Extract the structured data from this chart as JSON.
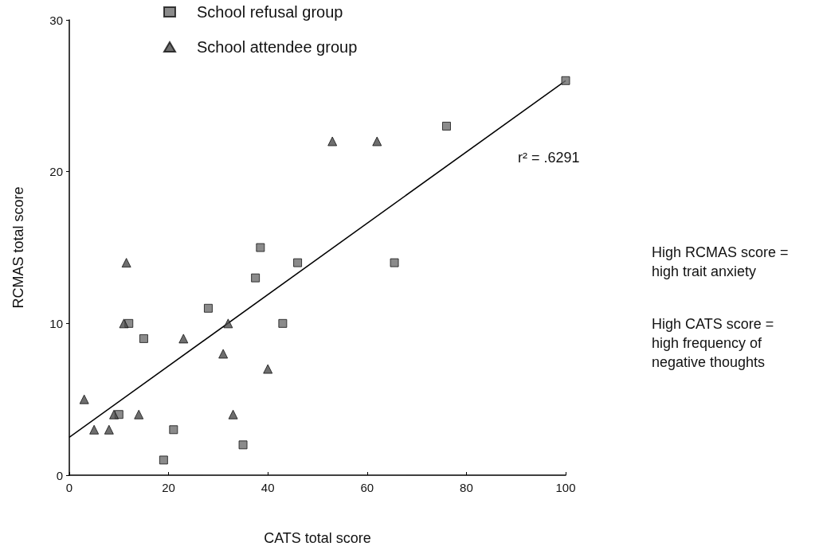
{
  "chart_data": {
    "type": "scatter",
    "xlabel": "CATS total score",
    "ylabel": "RCMAS total score",
    "xlim": [
      0,
      100
    ],
    "xticks": [
      0,
      20,
      40,
      60,
      80,
      100
    ],
    "ylim": [
      0,
      30
    ],
    "yticks": [
      0,
      10,
      20,
      30
    ],
    "grid": false,
    "legend": "top left",
    "series": [
      {
        "name": "School refusal group",
        "color": "#6e6e6e",
        "marker": "square",
        "x": [
          100,
          76,
          65.5,
          38.5,
          46,
          37.5,
          28,
          12,
          43,
          15,
          10,
          21,
          35,
          19
        ],
        "values": [
          26,
          23,
          14,
          15,
          14,
          13,
          11,
          10,
          10,
          9,
          4,
          3,
          2,
          1
        ]
      },
      {
        "name": "School attendee group",
        "color": "#4a4a4a",
        "marker": "triangle",
        "x": [
          53,
          62,
          11.5,
          11,
          32,
          23,
          31,
          40,
          3,
          9,
          14,
          33,
          5,
          8
        ],
        "values": [
          22,
          22,
          14,
          10,
          10,
          9,
          8,
          7,
          5,
          4,
          4,
          4,
          3,
          3
        ]
      },
      {
        "type": "line",
        "color": "#000000",
        "marker": "none",
        "x": [
          0,
          100
        ],
        "values": [
          2.5,
          26
        ]
      }
    ],
    "annotations": [
      "r² = .6291",
      "High RCMAS score = high trait anxiety",
      "High CATS score = high frequency of negative thoughts"
    ]
  }
}
